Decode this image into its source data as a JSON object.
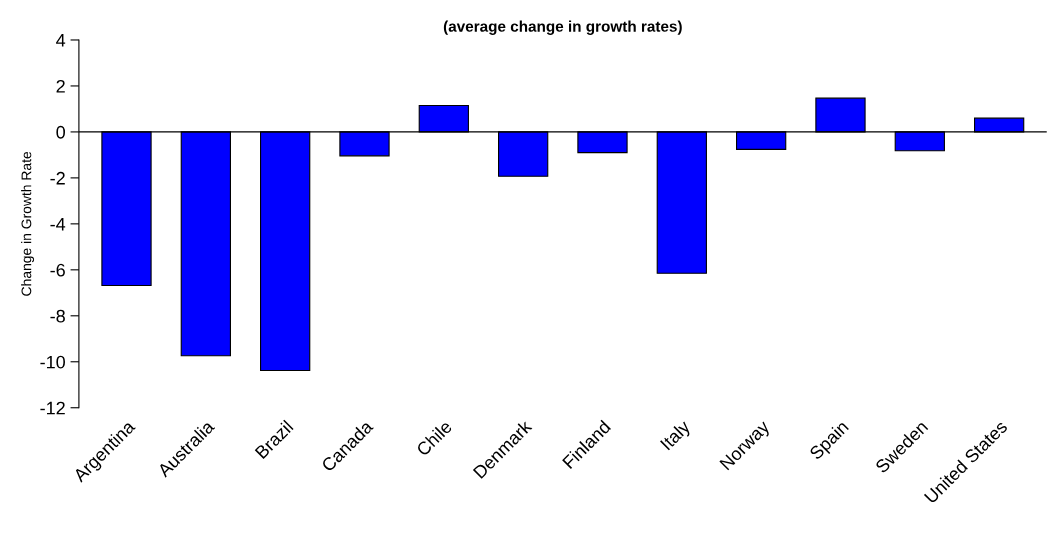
{
  "chart_data": {
    "type": "bar",
    "title": "(average change in growth rates)",
    "ylabel": "Change in Growth Rate",
    "categories": [
      "Argentina",
      "Australia",
      "Brazil",
      "Canada",
      "Chile",
      "Denmark",
      "Finland",
      "Italy",
      "Norway",
      "Spain",
      "Sweden",
      "United States"
    ],
    "values": [
      -6.68,
      -9.74,
      -10.38,
      -1.04,
      1.15,
      -1.93,
      -0.9,
      -6.15,
      -0.76,
      1.47,
      -0.82,
      0.6
    ],
    "color": "#0000ff",
    "ylim": [
      -12,
      4
    ],
    "yticks": [
      -12,
      -10,
      -8,
      -6,
      -4,
      -2,
      0,
      2,
      4
    ],
    "ref_lines": [
      {
        "axis": "y",
        "value": 0,
        "color": "#000000"
      }
    ],
    "grid": false
  }
}
